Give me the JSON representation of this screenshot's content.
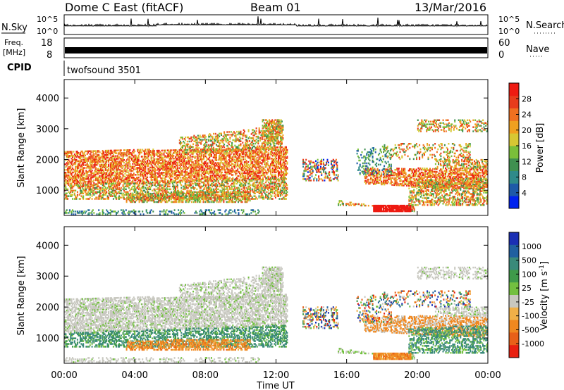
{
  "header": {
    "station": "Dome C East (fitACF)",
    "beam": "Beam 01",
    "date": "13/Mar/2016"
  },
  "noise_panel": {
    "left_label": "N.Sky",
    "right_label": "N.Search",
    "left_ticks": [
      "10^5",
      "10^0"
    ],
    "right_ticks": [
      "10^5",
      "10^0"
    ]
  },
  "freq_panel": {
    "left_label_1": "Freq.",
    "left_label_2": "[MHz]",
    "left_ticks": [
      "18",
      "8"
    ],
    "right_label": "Nave",
    "right_ticks": [
      "60",
      "0"
    ]
  },
  "cpid": {
    "label": "CPID",
    "program": "twofsound 3501"
  },
  "chart_data": [
    {
      "type": "heatmap",
      "parameter": "Power",
      "ylabel": "Slant Range [km]",
      "xlabel": "Time UT",
      "x_range_hours": [
        0,
        24
      ],
      "ylim_km": [
        180,
        4600
      ],
      "yticks": [
        "1000",
        "2000",
        "3000",
        "4000"
      ],
      "xticks": [
        "00:00",
        "04:00",
        "08:00",
        "12:00",
        "16:00",
        "20:00",
        "00:00"
      ],
      "colorbar": {
        "label": "Power [dB]",
        "ticks": [
          "4",
          "8",
          "12",
          "16",
          "20",
          "24",
          "28"
        ],
        "colors": [
          "#0022ee",
          "#1e5aa8",
          "#2f8a8a",
          "#3f9050",
          "#7abf3a",
          "#d7c733",
          "#f0a020",
          "#f07020",
          "#e83c1c",
          "#ee1b12"
        ]
      }
    },
    {
      "type": "heatmap",
      "parameter": "Velocity",
      "ylabel": "Slant Range [km]",
      "xlabel": "Time UT",
      "x_range_hours": [
        0,
        24
      ],
      "ylim_km": [
        180,
        4600
      ],
      "yticks": [
        "1000",
        "2000",
        "3000",
        "4000"
      ],
      "xticks": [
        "00:00",
        "04:00",
        "08:00",
        "12:00",
        "16:00",
        "20:00",
        "00:00"
      ],
      "colorbar": {
        "label": "Velocity [m s^-1]",
        "ticks": [
          "1000",
          "500",
          "100",
          "25",
          "-25",
          "-100",
          "-500",
          "-1000"
        ],
        "colors": [
          "#1a2fb4",
          "#2060a0",
          "#3a8a7a",
          "#3f9a4a",
          "#73c040",
          "#c8c8c0",
          "#f0b048",
          "#f08820",
          "#e86018",
          "#e82010"
        ]
      }
    }
  ]
}
